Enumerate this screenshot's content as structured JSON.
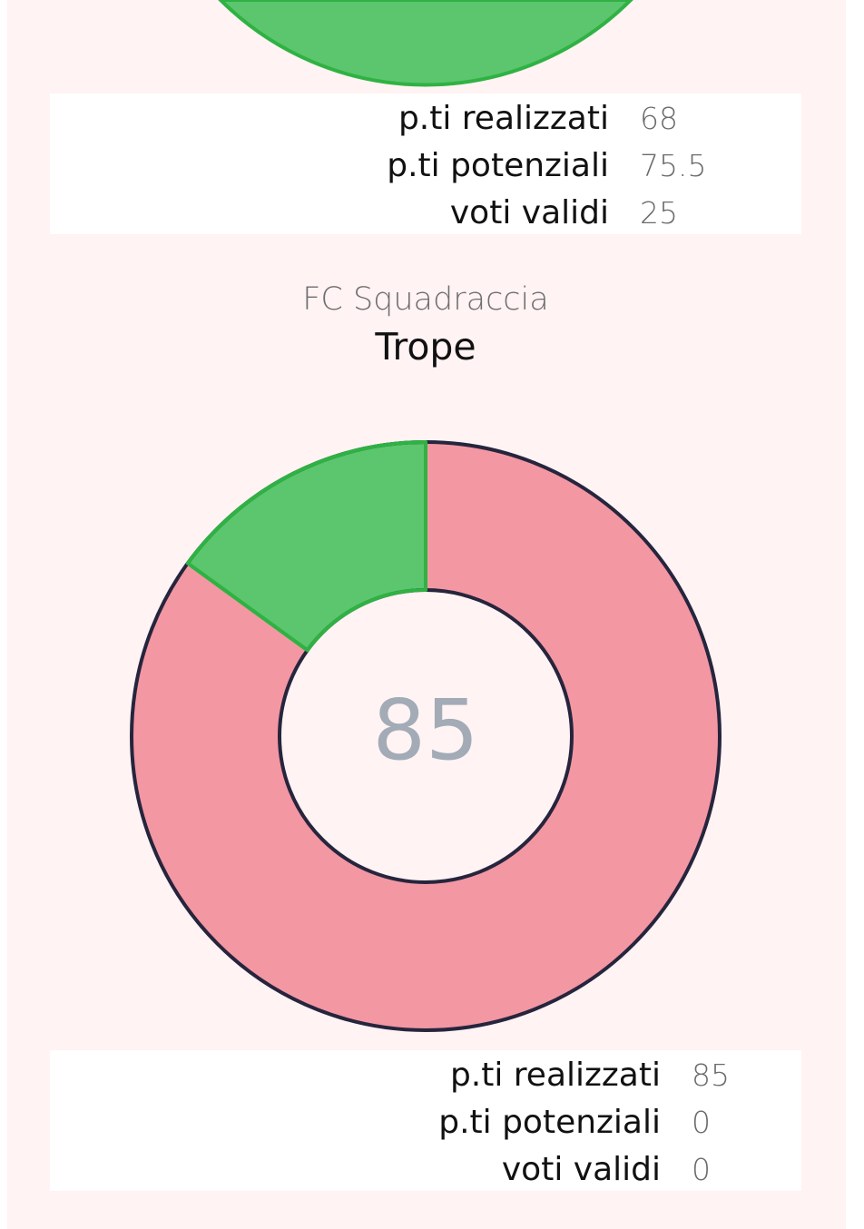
{
  "colors": {
    "achieved": "#5bc66d",
    "achieved_stroke": "#2fb243",
    "remaining": "#f397a3",
    "outline": "#26253d",
    "card_bg": "#fff3f4"
  },
  "card_top": {
    "stats": [
      {
        "label": "p.ti realizzati",
        "value": "68"
      },
      {
        "label": "p.ti potenziali",
        "value": "75.5"
      },
      {
        "label": "voti validi",
        "value": "25"
      }
    ]
  },
  "card_main": {
    "team": "FC Squadraccia",
    "player": "Trope",
    "center_value": "85",
    "stats": [
      {
        "label": "p.ti realizzati",
        "value": "85"
      },
      {
        "label": "p.ti potenziali",
        "value": "0"
      },
      {
        "label": "voti validi",
        "value": "0"
      }
    ]
  },
  "chart_data": [
    {
      "type": "pie",
      "title": "",
      "categories": [
        "green",
        "red"
      ],
      "values": [
        100,
        0
      ],
      "visible_portion": "bottom only (cropped)"
    },
    {
      "type": "pie",
      "title": "",
      "hole": true,
      "center_label": "85",
      "categories": [
        "green",
        "red"
      ],
      "values": [
        15,
        85
      ]
    }
  ]
}
